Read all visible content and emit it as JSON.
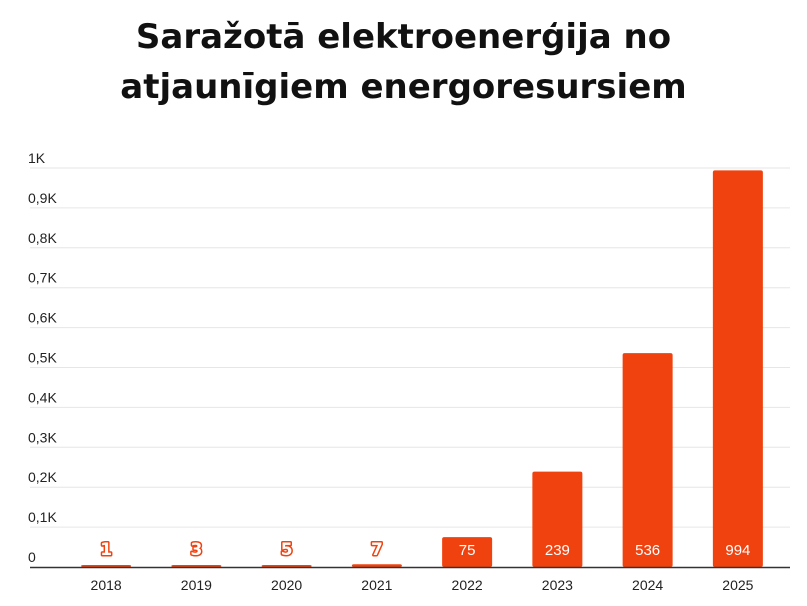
{
  "chart_data": {
    "type": "bar",
    "title": "Saražotā elektroenerģija no atjaunīgiem energoresursiem",
    "categories": [
      "2018",
      "2019",
      "2020",
      "2021",
      "2022",
      "2023",
      "2024",
      "2025"
    ],
    "values": [
      1,
      3,
      5,
      7,
      75,
      239,
      536,
      994
    ],
    "data_labels": [
      "1",
      "3",
      "5",
      "7",
      "75",
      "239",
      "536",
      "994"
    ],
    "ylim": [
      0,
      1000
    ],
    "y_ticks": [
      {
        "value": 0,
        "label": "0"
      },
      {
        "value": 100,
        "label": "0,1K"
      },
      {
        "value": 200,
        "label": "0,2K"
      },
      {
        "value": 300,
        "label": "0,3K"
      },
      {
        "value": 400,
        "label": "0,4K"
      },
      {
        "value": 500,
        "label": "0,5K"
      },
      {
        "value": 600,
        "label": "0,6K"
      },
      {
        "value": 700,
        "label": "0,7K"
      },
      {
        "value": 800,
        "label": "0,8K"
      },
      {
        "value": 900,
        "label": "0,9K"
      },
      {
        "value": 1000,
        "label": "1K"
      }
    ],
    "grid": true,
    "legend": "none",
    "bar_color": "#f0420f",
    "grid_color": "#e6e6e6",
    "axis_color": "#333333"
  }
}
